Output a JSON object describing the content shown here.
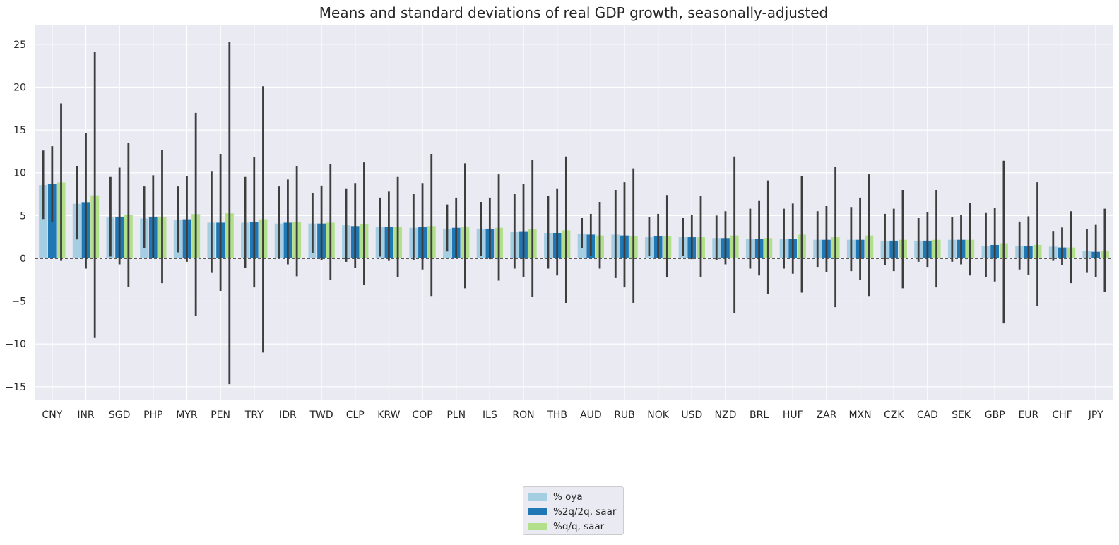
{
  "chart_data": {
    "type": "bar",
    "title": "Means and standard deviations of real GDP growth, seasonally-adjusted",
    "xlabel": "",
    "ylabel": "",
    "ylim": [
      -16.5,
      27.3
    ],
    "yticks": [
      -15,
      -10,
      -5,
      0,
      5,
      10,
      15,
      20,
      25
    ],
    "ytick_labels": [
      "−15",
      "−10",
      "−5",
      "0",
      "5",
      "10",
      "15",
      "20",
      "25"
    ],
    "grid": true,
    "zero_line": "dashed",
    "legend_position": "bottom-center",
    "categories": [
      "CNY",
      "INR",
      "SGD",
      "PHP",
      "MYR",
      "PEN",
      "TRY",
      "IDR",
      "TWD",
      "CLP",
      "KRW",
      "COP",
      "PLN",
      "ILS",
      "RON",
      "THB",
      "AUD",
      "RUB",
      "NOK",
      "USD",
      "NZD",
      "BRL",
      "HUF",
      "ZAR",
      "MXN",
      "CZK",
      "CAD",
      "SEK",
      "GBP",
      "EUR",
      "CHF",
      "JPY"
    ],
    "series": [
      {
        "name": "% oya",
        "color": "#a6cee3",
        "values": [
          8.6,
          6.4,
          4.8,
          4.7,
          4.5,
          4.2,
          4.2,
          4.1,
          4.1,
          3.9,
          3.7,
          3.6,
          3.5,
          3.5,
          3.1,
          3.0,
          2.9,
          2.8,
          2.5,
          2.5,
          2.4,
          2.3,
          2.3,
          2.2,
          2.2,
          2.1,
          2.1,
          2.2,
          1.5,
          1.5,
          1.4,
          0.9
        ],
        "err_low": [
          4.6,
          2.2,
          0.2,
          1.2,
          0.7,
          -1.7,
          -1.1,
          0.0,
          0.6,
          -0.4,
          0.2,
          -0.2,
          0.8,
          0.3,
          -1.2,
          -1.2,
          1.2,
          -2.3,
          0.3,
          0.3,
          -0.2,
          -1.2,
          -1.2,
          -1.0,
          -1.5,
          -0.8,
          -0.4,
          -0.4,
          -2.2,
          -1.3,
          -0.3,
          -1.7
        ],
        "err_high": [
          12.6,
          10.8,
          9.5,
          8.4,
          8.4,
          10.2,
          9.5,
          8.4,
          7.6,
          8.1,
          7.1,
          7.5,
          6.3,
          6.6,
          7.5,
          7.3,
          4.7,
          8.0,
          4.8,
          4.7,
          5.0,
          5.8,
          5.8,
          5.5,
          6.0,
          5.2,
          4.7,
          4.8,
          5.3,
          4.3,
          3.2,
          3.4
        ]
      },
      {
        "name": "%2q/2q, saar",
        "color": "#1f78b4",
        "values": [
          8.7,
          6.6,
          4.9,
          4.9,
          4.6,
          4.2,
          4.3,
          4.2,
          4.1,
          3.8,
          3.7,
          3.7,
          3.6,
          3.5,
          3.2,
          3.0,
          2.8,
          2.7,
          2.6,
          2.5,
          2.4,
          2.3,
          2.3,
          2.2,
          2.2,
          2.1,
          2.1,
          2.2,
          1.6,
          1.5,
          1.3,
          0.8
        ],
        "err_low": [
          4.2,
          -1.2,
          -0.7,
          0.0,
          -0.4,
          -3.8,
          -3.4,
          -0.7,
          -0.2,
          -1.1,
          -0.3,
          -1.3,
          0.1,
          -0.1,
          -2.2,
          -2.0,
          0.3,
          -3.4,
          0.0,
          -0.1,
          -0.7,
          -2.0,
          -1.8,
          -1.6,
          -2.5,
          -1.5,
          -1.0,
          -0.7,
          -2.7,
          -1.9,
          -0.8,
          -2.2
        ],
        "err_high": [
          13.1,
          14.6,
          10.6,
          9.7,
          9.6,
          12.2,
          11.8,
          9.2,
          8.5,
          8.8,
          7.8,
          8.8,
          7.1,
          7.1,
          8.7,
          8.1,
          5.2,
          8.9,
          5.2,
          5.1,
          5.5,
          6.7,
          6.4,
          6.1,
          7.1,
          5.8,
          5.4,
          5.1,
          5.9,
          4.9,
          3.6,
          3.9
        ]
      },
      {
        "name": "%q/q, saar",
        "color": "#b2df8a",
        "values": [
          8.9,
          7.4,
          5.1,
          4.9,
          5.2,
          5.3,
          4.6,
          4.3,
          4.2,
          4.0,
          3.7,
          3.8,
          3.7,
          3.6,
          3.4,
          3.3,
          2.7,
          2.6,
          2.6,
          2.5,
          2.7,
          2.4,
          2.8,
          2.5,
          2.7,
          2.2,
          2.2,
          2.2,
          1.8,
          1.6,
          1.3,
          0.9
        ],
        "err_low": [
          -0.3,
          -9.3,
          -3.3,
          -2.9,
          -6.7,
          -14.7,
          -11.0,
          -2.1,
          -2.5,
          -3.1,
          -2.2,
          -4.4,
          -3.5,
          -2.6,
          -4.5,
          -5.2,
          -1.2,
          -5.2,
          -2.2,
          -2.2,
          -6.4,
          -4.2,
          -4.0,
          -5.7,
          -4.4,
          -3.5,
          -3.4,
          -2.0,
          -7.6,
          -5.6,
          -2.9,
          -3.9
        ],
        "err_high": [
          18.1,
          24.1,
          13.5,
          12.7,
          17.0,
          25.3,
          20.1,
          10.8,
          11.0,
          11.2,
          9.5,
          12.2,
          11.1,
          9.8,
          11.5,
          11.9,
          6.6,
          10.5,
          7.4,
          7.3,
          11.9,
          9.1,
          9.6,
          10.7,
          9.8,
          8.0,
          8.0,
          6.5,
          11.4,
          8.9,
          5.5,
          5.8
        ]
      }
    ]
  }
}
